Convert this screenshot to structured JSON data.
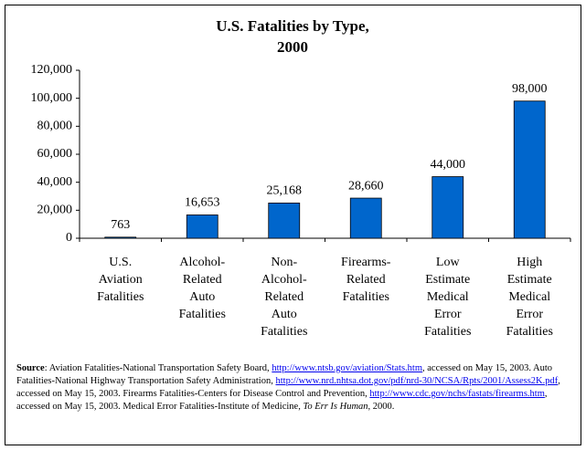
{
  "chart_data": {
    "type": "bar",
    "title": [
      "U.S. Fatalities by Type,",
      "2000"
    ],
    "categories": [
      "U.S. Aviation Fatalities",
      "Alcohol-Related Auto Fatalities",
      "Non-Alcohol-Related Auto Fatalities",
      "Firearms-Related Fatalities",
      "Low Estimate Medical Error Fatalities",
      "High Estimate Medical Error Fatalities"
    ],
    "values": [
      763,
      16653,
      25168,
      28660,
      44000,
      98000
    ],
    "value_labels": [
      "763",
      "16,653",
      "25,168",
      "28,660",
      "44,000",
      "98,000"
    ],
    "color": "#0066cc",
    "ylim": [
      0,
      120000
    ],
    "yticks": [
      0,
      {
        "value": 20000,
        "label": "20,000"
      },
      {
        "value": 40000,
        "label": "40,000"
      },
      {
        "value": 60000,
        "label": "60,000"
      },
      {
        "value": 80000,
        "label": "80,000"
      },
      {
        "value": 100000,
        "label": "100,000"
      },
      {
        "value": 120000,
        "label": "120,000"
      }
    ],
    "grid": false
  },
  "source": [
    "Source",
    ":  Aviation Fatalities-National Transportation Safety Board, ",
    "http://www.ntsb.gov/aviation/Stats.htm",
    ", accessed on May 15, 2003.  Auto Fatalities-National Highway Transportation Safety Administration, ",
    "http://www.nrd.nhtsa.dot.gov/pdf/nrd-30/NCSA/Rpts/2001/Assess2K.pdf",
    ", accessed on May 15, 2003.  Firearms Fatalities-Centers for Disease Control and Prevention, ",
    "http://www.cdc.gov/nchs/fastats/firearms.htm",
    ", accessed on May 15, 2003.  Medical Error Fatalities-Institute of Medicine, ",
    "To Err Is Human",
    ", 2000."
  ]
}
